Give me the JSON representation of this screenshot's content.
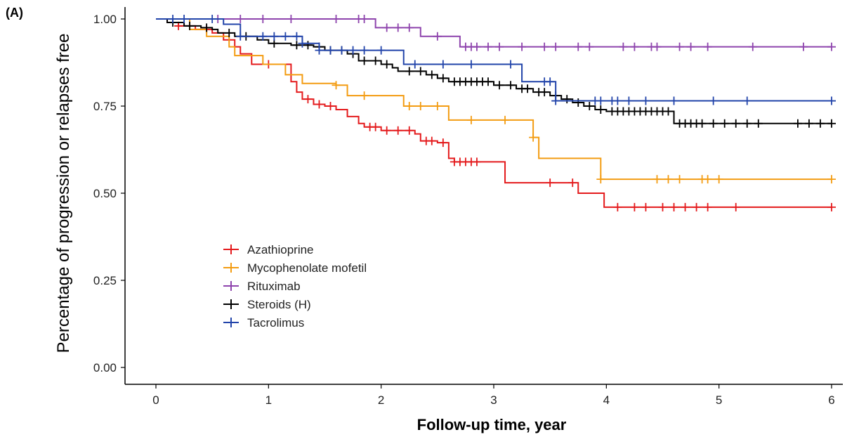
{
  "panel_label": "(A)",
  "chart_data": {
    "type": "line",
    "subtype": "kaplan-meier",
    "xlabel": "Follow-up time, year",
    "ylabel": "Percentage of progression or relapses free",
    "xlim": [
      0,
      6
    ],
    "ylim": [
      0,
      1
    ],
    "x_ticks": [
      0,
      1,
      2,
      3,
      4,
      5,
      6
    ],
    "x_tick_labels": [
      "0",
      "1",
      "2",
      "3",
      "4",
      "5",
      "6"
    ],
    "y_ticks": [
      0,
      0.25,
      0.5,
      0.75,
      1.0
    ],
    "y_tick_labels": [
      "0.00",
      "0.25",
      "0.50",
      "0.75",
      "1.00"
    ],
    "grid": false,
    "legend_position": "bottom-left",
    "series": [
      {
        "name": "Azathioprine",
        "color": "#e41a1c",
        "steps": [
          [
            0,
            1.0
          ],
          [
            0.1,
            0.99
          ],
          [
            0.2,
            0.98
          ],
          [
            0.35,
            0.97
          ],
          [
            0.5,
            0.96
          ],
          [
            0.6,
            0.94
          ],
          [
            0.7,
            0.92
          ],
          [
            0.75,
            0.9
          ],
          [
            0.85,
            0.87
          ],
          [
            1.2,
            0.82
          ],
          [
            1.25,
            0.79
          ],
          [
            1.3,
            0.77
          ],
          [
            1.4,
            0.755
          ],
          [
            1.5,
            0.75
          ],
          [
            1.6,
            0.74
          ],
          [
            1.7,
            0.72
          ],
          [
            1.8,
            0.7
          ],
          [
            1.85,
            0.69
          ],
          [
            2.0,
            0.68
          ],
          [
            2.3,
            0.67
          ],
          [
            2.35,
            0.65
          ],
          [
            2.5,
            0.645
          ],
          [
            2.6,
            0.6
          ],
          [
            2.65,
            0.59
          ],
          [
            2.9,
            0.59
          ],
          [
            3.1,
            0.53
          ],
          [
            3.75,
            0.5
          ],
          [
            3.98,
            0.46
          ],
          [
            6.0,
            0.46
          ]
        ],
        "censor_x": [
          0.2,
          0.3,
          0.45,
          1.0,
          1.35,
          1.45,
          1.55,
          1.9,
          1.95,
          2.05,
          2.15,
          2.25,
          2.4,
          2.45,
          2.55,
          2.65,
          2.7,
          2.75,
          2.8,
          2.85,
          3.5,
          3.7,
          4.1,
          4.25,
          4.35,
          4.5,
          4.6,
          4.7,
          4.8,
          4.9,
          5.15,
          6.0
        ]
      },
      {
        "name": "Mycophenolate mofetil",
        "color": "#f39c12",
        "steps": [
          [
            0,
            1.0
          ],
          [
            0.3,
            0.97
          ],
          [
            0.45,
            0.95
          ],
          [
            0.65,
            0.92
          ],
          [
            0.7,
            0.895
          ],
          [
            0.95,
            0.87
          ],
          [
            1.15,
            0.84
          ],
          [
            1.3,
            0.815
          ],
          [
            1.6,
            0.81
          ],
          [
            1.7,
            0.78
          ],
          [
            2.2,
            0.75
          ],
          [
            2.6,
            0.71
          ],
          [
            3.35,
            0.66
          ],
          [
            3.4,
            0.6
          ],
          [
            3.95,
            0.54
          ],
          [
            6.0,
            0.54
          ]
        ],
        "censor_x": [
          1.6,
          1.85,
          2.25,
          2.35,
          2.5,
          2.8,
          3.1,
          3.35,
          3.95,
          4.45,
          4.55,
          4.65,
          4.85,
          4.9,
          5.0,
          6.0
        ]
      },
      {
        "name": "Rituximab",
        "color": "#8e44ad",
        "steps": [
          [
            0,
            1.0
          ],
          [
            1.95,
            0.975
          ],
          [
            2.35,
            0.95
          ],
          [
            2.7,
            0.92
          ],
          [
            6.0,
            0.92
          ]
        ],
        "censor_x": [
          0.55,
          0.75,
          0.95,
          1.2,
          1.6,
          1.8,
          1.85,
          2.05,
          2.15,
          2.25,
          2.5,
          2.75,
          2.8,
          2.85,
          2.95,
          3.05,
          3.25,
          3.45,
          3.55,
          3.75,
          3.85,
          4.15,
          4.25,
          4.4,
          4.45,
          4.65,
          4.75,
          4.9,
          5.3,
          5.75,
          6.0
        ]
      },
      {
        "name": "Steroids (H)",
        "color": "#000000",
        "steps": [
          [
            0,
            1.0
          ],
          [
            0.1,
            0.99
          ],
          [
            0.25,
            0.98
          ],
          [
            0.4,
            0.975
          ],
          [
            0.5,
            0.97
          ],
          [
            0.55,
            0.96
          ],
          [
            0.7,
            0.95
          ],
          [
            0.9,
            0.94
          ],
          [
            1.0,
            0.93
          ],
          [
            1.2,
            0.925
          ],
          [
            1.4,
            0.92
          ],
          [
            1.5,
            0.91
          ],
          [
            1.7,
            0.9
          ],
          [
            1.8,
            0.88
          ],
          [
            2.0,
            0.87
          ],
          [
            2.1,
            0.86
          ],
          [
            2.15,
            0.85
          ],
          [
            2.4,
            0.84
          ],
          [
            2.5,
            0.83
          ],
          [
            2.6,
            0.82
          ],
          [
            3.0,
            0.81
          ],
          [
            3.2,
            0.8
          ],
          [
            3.35,
            0.79
          ],
          [
            3.5,
            0.78
          ],
          [
            3.6,
            0.77
          ],
          [
            3.7,
            0.76
          ],
          [
            3.8,
            0.75
          ],
          [
            3.9,
            0.74
          ],
          [
            4.0,
            0.735
          ],
          [
            4.6,
            0.7
          ],
          [
            6.0,
            0.7
          ]
        ],
        "censor_x": [
          0.15,
          0.3,
          0.45,
          0.65,
          0.8,
          1.05,
          1.25,
          1.35,
          1.45,
          1.55,
          1.65,
          1.75,
          1.85,
          1.95,
          2.05,
          2.25,
          2.35,
          2.45,
          2.55,
          2.65,
          2.7,
          2.75,
          2.8,
          2.85,
          2.9,
          2.95,
          3.05,
          3.15,
          3.25,
          3.3,
          3.4,
          3.45,
          3.55,
          3.65,
          3.75,
          3.85,
          3.95,
          4.05,
          4.1,
          4.15,
          4.2,
          4.25,
          4.3,
          4.35,
          4.4,
          4.45,
          4.5,
          4.55,
          4.65,
          4.7,
          4.75,
          4.8,
          4.85,
          4.95,
          5.05,
          5.15,
          5.25,
          5.35,
          5.7,
          5.8,
          5.9,
          6.0
        ]
      },
      {
        "name": "Tacrolimus",
        "color": "#2244aa",
        "steps": [
          [
            0,
            1.0
          ],
          [
            0.6,
            0.985
          ],
          [
            0.75,
            0.95
          ],
          [
            1.0,
            0.95
          ],
          [
            1.3,
            0.93
          ],
          [
            1.45,
            0.91
          ],
          [
            2.2,
            0.87
          ],
          [
            3.25,
            0.82
          ],
          [
            3.55,
            0.765
          ],
          [
            6.0,
            0.765
          ]
        ],
        "censor_x": [
          0.15,
          0.25,
          0.5,
          0.75,
          0.95,
          1.05,
          1.15,
          1.25,
          1.3,
          1.45,
          1.55,
          1.65,
          1.75,
          1.85,
          2.0,
          2.3,
          2.55,
          2.8,
          3.15,
          3.45,
          3.5,
          3.55,
          3.9,
          3.95,
          4.05,
          4.1,
          4.2,
          4.35,
          4.6,
          4.95,
          5.25,
          6.0
        ]
      }
    ]
  }
}
